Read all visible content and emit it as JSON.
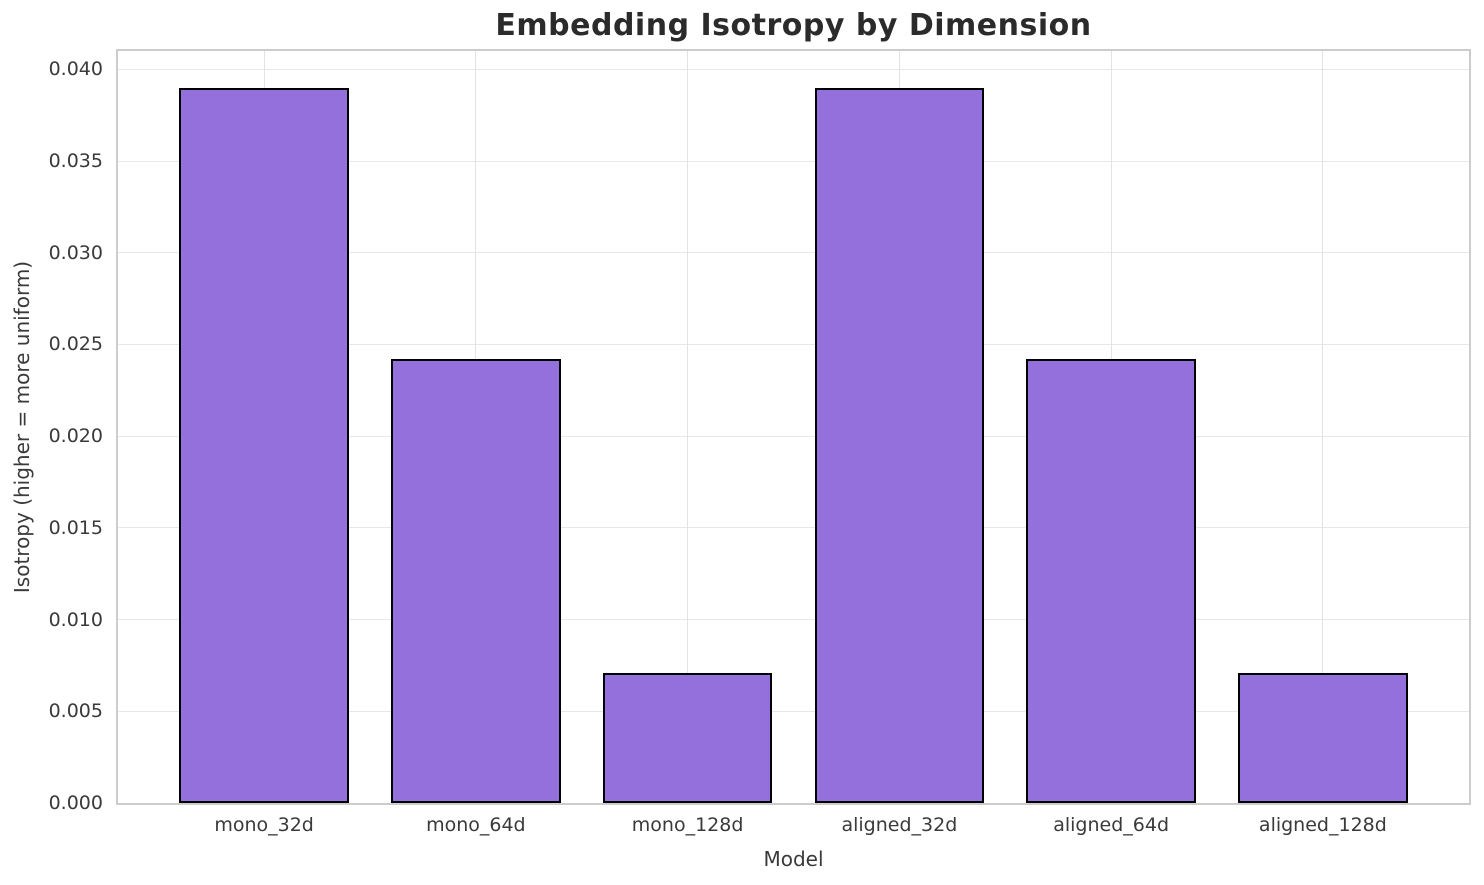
{
  "chart_data": {
    "type": "bar",
    "title": "Embedding Isotropy by Dimension",
    "xlabel": "Model",
    "ylabel": "Isotropy (higher = more uniform)",
    "categories": [
      "mono_32d",
      "mono_64d",
      "mono_128d",
      "aligned_32d",
      "aligned_64d",
      "aligned_128d"
    ],
    "values": [
      0.039,
      0.0242,
      0.0071,
      0.039,
      0.0242,
      0.0071
    ],
    "ylim": [
      0,
      0.041
    ],
    "yticks": [
      0.0,
      0.005,
      0.01,
      0.015,
      0.02,
      0.025,
      0.03,
      0.035,
      0.04
    ],
    "ytick_labels": [
      "0.000",
      "0.005",
      "0.010",
      "0.015",
      "0.020",
      "0.025",
      "0.030",
      "0.035",
      "0.040"
    ],
    "bar_width_fraction": 0.8,
    "grid": true,
    "legend_position": "none",
    "colors": {
      "bar_fill": "#9370DB",
      "bar_edge": "#000000",
      "grid": "#e8e8e8",
      "spine": "#cccccc",
      "tick_text": "#3a3a3a",
      "title_text": "#2b2b2b",
      "background": "#ffffff"
    }
  }
}
